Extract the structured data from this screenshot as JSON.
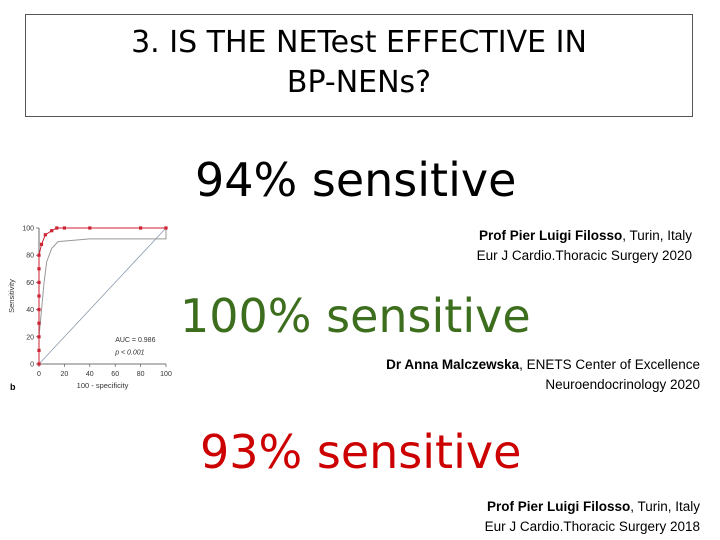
{
  "title": {
    "number": "3.",
    "line1": "IS THE NETest EFFECTIVE IN",
    "line2": "BP-NENs?"
  },
  "stats": [
    {
      "text": "94% sensitive",
      "color": "#000000"
    },
    {
      "text": "100% sensitive",
      "color": "#3c6e1e"
    },
    {
      "text": "93% sensitive",
      "color": "#cc0000"
    }
  ],
  "citations": [
    {
      "author": "Prof Pier Luigi Filosso",
      "rest": ", Turin, Italy",
      "line2": "Eur J Cardio.Thoracic Surgery 2020",
      "color": "#000000"
    },
    {
      "author": "Dr Anna Malczewska",
      "rest": ", ENETS Center of Excellence",
      "line2": "Neuroendocrinology 2020",
      "color": "#000000"
    },
    {
      "author": "Prof Pier Luigi Filosso",
      "rest": ", Turin, Italy",
      "line2": "Eur J Cardio.Thoracic Surgery 2018",
      "color": "#000000"
    }
  ],
  "chart_data": {
    "type": "line",
    "xlabel": "100 - specificity",
    "ylabel": "Sensitivity",
    "xlim": [
      0,
      100
    ],
    "ylim": [
      0,
      100
    ],
    "xticks": [
      "0",
      "20",
      "40",
      "60",
      "80",
      "100"
    ],
    "yticks": [
      "0",
      "20",
      "40",
      "60",
      "80",
      "100"
    ],
    "panel_label": "b",
    "annotation_auc": "AUC = 0.986",
    "annotation_p": "p < 0.001",
    "series": [
      {
        "color": "#cc2233",
        "points": [
          [
            0,
            0
          ],
          [
            0,
            10
          ],
          [
            0,
            20
          ],
          [
            0,
            30
          ],
          [
            0,
            40
          ],
          [
            0,
            50
          ],
          [
            0,
            60
          ],
          [
            0,
            70
          ],
          [
            0,
            80
          ],
          [
            2,
            88
          ],
          [
            5,
            95
          ],
          [
            10,
            98
          ],
          [
            14,
            100
          ],
          [
            20,
            100
          ],
          [
            40,
            100
          ],
          [
            80,
            100
          ],
          [
            100,
            100
          ]
        ]
      },
      {
        "color": "#999999",
        "points": [
          [
            0,
            0
          ],
          [
            0,
            20
          ],
          [
            2,
            40
          ],
          [
            4,
            60
          ],
          [
            6,
            75
          ],
          [
            10,
            85
          ],
          [
            15,
            90
          ],
          [
            40,
            92
          ],
          [
            100,
            92
          ],
          [
            100,
            100
          ]
        ]
      }
    ]
  }
}
